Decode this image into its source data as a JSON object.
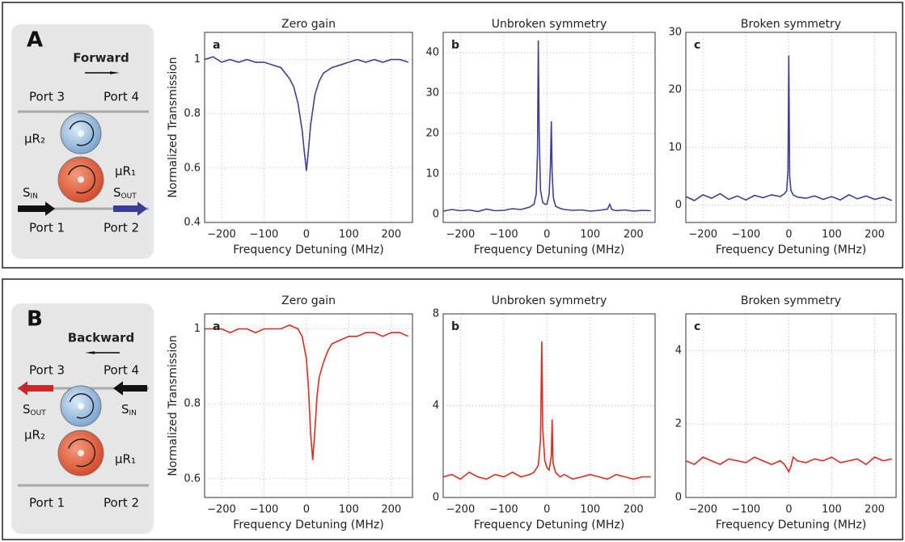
{
  "chart_data": [
    {
      "type": "line",
      "title": "Zero gain",
      "panel_label": "a",
      "y_label": "Normalized Transmission",
      "x_label": "Frequency Detuning (MHz)",
      "color": "#3c3f9c",
      "x": [
        -240,
        -220,
        -200,
        -180,
        -160,
        -140,
        -120,
        -100,
        -80,
        -60,
        -40,
        -30,
        -20,
        -10,
        -5,
        0,
        5,
        10,
        20,
        30,
        40,
        60,
        80,
        100,
        120,
        140,
        160,
        180,
        200,
        220,
        240
      ],
      "values": [
        1.0,
        1.01,
        0.99,
        1.0,
        0.99,
        1.0,
        0.99,
        0.99,
        0.98,
        0.97,
        0.93,
        0.9,
        0.84,
        0.74,
        0.66,
        0.59,
        0.67,
        0.76,
        0.87,
        0.92,
        0.95,
        0.97,
        0.98,
        0.99,
        1.0,
        0.99,
        1.0,
        0.99,
        1.0,
        1.0,
        0.99
      ],
      "xlim": [
        -240,
        250
      ],
      "xticks": [
        {
          "value": -200,
          "label": "−200"
        },
        {
          "value": -100,
          "label": "−100"
        },
        0,
        100,
        200
      ],
      "ylim": [
        0.4,
        1.1
      ],
      "yticks": [
        0.4,
        0.6,
        0.8,
        1
      ],
      "grid": true
    },
    {
      "type": "line",
      "title": "Unbroken symmetry",
      "panel_label": "b",
      "x_label": "Frequency Detuning (MHz)",
      "color": "#3c3f9c",
      "x": [
        -240,
        -220,
        -200,
        -180,
        -160,
        -140,
        -120,
        -100,
        -80,
        -60,
        -40,
        -30,
        -25,
        -22,
        -20,
        -18,
        -15,
        -10,
        -5,
        0,
        5,
        8,
        10,
        12,
        15,
        20,
        30,
        40,
        60,
        80,
        100,
        120,
        140,
        145,
        150,
        160,
        180,
        200,
        220,
        240
      ],
      "values": [
        0.8,
        1.2,
        0.9,
        1.1,
        0.7,
        1.3,
        0.9,
        1.0,
        1.4,
        1.2,
        1.8,
        2.5,
        5,
        15,
        43,
        20,
        6,
        3,
        2.5,
        2.5,
        5,
        12,
        23,
        10,
        4,
        2,
        1.5,
        1.2,
        1.0,
        1.1,
        0.8,
        1.0,
        1.3,
        2.5,
        1.2,
        0.9,
        1.1,
        0.8,
        1.0,
        0.9
      ],
      "xlim": [
        -240,
        250
      ],
      "xticks": [
        {
          "value": -200,
          "label": "−200"
        },
        {
          "value": -100,
          "label": "−100"
        },
        0,
        100,
        200
      ],
      "ylim": [
        -2,
        45
      ],
      "yticks": [
        0,
        10,
        20,
        30,
        40
      ],
      "grid": true
    },
    {
      "type": "line",
      "title": "Broken symmetry",
      "panel_label": "c",
      "x_label": "Frequency Detuning (MHz)",
      "color": "#3c3f9c",
      "x": [
        -240,
        -220,
        -200,
        -180,
        -160,
        -140,
        -120,
        -100,
        -80,
        -60,
        -40,
        -20,
        -10,
        -5,
        -2,
        0,
        2,
        5,
        10,
        20,
        40,
        60,
        80,
        100,
        120,
        140,
        160,
        180,
        200,
        220,
        240
      ],
      "values": [
        1.5,
        0.8,
        1.8,
        1.2,
        2.0,
        1.0,
        1.6,
        0.9,
        1.7,
        1.3,
        1.8,
        1.5,
        2.0,
        2.5,
        6,
        26,
        5,
        2.5,
        1.8,
        1.4,
        1.2,
        1.6,
        1.0,
        1.5,
        0.9,
        1.8,
        1.1,
        1.6,
        1.0,
        1.4,
        0.8
      ],
      "xlim": [
        -240,
        250
      ],
      "xticks": [
        {
          "value": -200,
          "label": "−200"
        },
        {
          "value": -100,
          "label": "−100"
        },
        0,
        100,
        200
      ],
      "ylim": [
        -3,
        30
      ],
      "yticks": [
        0,
        10,
        20,
        30
      ],
      "grid": true
    },
    {
      "type": "line",
      "title": "Zero gain",
      "panel_label": "a",
      "y_label": "Normalized Transmission",
      "x_label": "Frequency Detuning (MHz)",
      "color": "#e02a1e",
      "x": [
        -240,
        -220,
        -200,
        -180,
        -160,
        -140,
        -120,
        -100,
        -80,
        -60,
        -40,
        -20,
        -10,
        0,
        5,
        10,
        15,
        20,
        25,
        30,
        40,
        50,
        60,
        80,
        100,
        120,
        140,
        160,
        180,
        200,
        220,
        240
      ],
      "values": [
        1.0,
        1.0,
        1.0,
        0.99,
        1.0,
        1.0,
        0.99,
        1.0,
        1.0,
        1.0,
        1.01,
        1.0,
        0.98,
        0.92,
        0.84,
        0.72,
        0.65,
        0.73,
        0.82,
        0.87,
        0.91,
        0.94,
        0.96,
        0.97,
        0.98,
        0.98,
        0.99,
        0.99,
        0.98,
        0.99,
        0.99,
        0.98
      ],
      "xlim": [
        -240,
        250
      ],
      "xticks": [
        {
          "value": -200,
          "label": "−200"
        },
        {
          "value": -100,
          "label": "−100"
        },
        0,
        100,
        200
      ],
      "ylim": [
        0.55,
        1.04
      ],
      "yticks": [
        0.6,
        0.8,
        1
      ],
      "grid": true
    },
    {
      "type": "line",
      "title": "Unbroken symmetry",
      "panel_label": "b",
      "x_label": "Frequency Detuning (MHz)",
      "color": "#e02a1e",
      "x": [
        -240,
        -220,
        -200,
        -180,
        -160,
        -140,
        -120,
        -100,
        -80,
        -60,
        -40,
        -30,
        -20,
        -15,
        -12,
        -10,
        -5,
        0,
        5,
        10,
        12,
        14,
        20,
        30,
        40,
        60,
        80,
        100,
        120,
        140,
        160,
        180,
        200,
        220,
        240
      ],
      "values": [
        0.9,
        1.0,
        0.8,
        1.1,
        0.9,
        0.8,
        1.0,
        0.9,
        1.1,
        0.9,
        1.0,
        1.1,
        1.4,
        2.5,
        6.8,
        3.0,
        1.6,
        1.3,
        1.2,
        1.8,
        3.4,
        1.5,
        1.1,
        0.9,
        1.0,
        0.8,
        0.9,
        1.0,
        0.9,
        0.8,
        1.0,
        0.9,
        0.8,
        0.9,
        0.9
      ],
      "xlim": [
        -240,
        250
      ],
      "xticks": [
        {
          "value": -200,
          "label": "−200"
        },
        {
          "value": -100,
          "label": "−100"
        },
        0,
        100,
        200
      ],
      "ylim": [
        0,
        8
      ],
      "yticks": [
        0,
        4,
        8
      ],
      "grid": true
    },
    {
      "type": "line",
      "title": "Broken symmetry",
      "panel_label": "c",
      "x_label": "Frequency Detuning (MHz)",
      "color": "#e02a1e",
      "x": [
        -240,
        -220,
        -200,
        -180,
        -160,
        -140,
        -120,
        -100,
        -80,
        -60,
        -40,
        -20,
        -10,
        -5,
        0,
        5,
        10,
        20,
        40,
        60,
        80,
        100,
        120,
        140,
        160,
        180,
        200,
        220,
        240
      ],
      "values": [
        1.0,
        0.9,
        1.1,
        1.0,
        0.9,
        1.05,
        1.0,
        0.95,
        1.1,
        1.0,
        0.9,
        1.0,
        0.9,
        0.8,
        0.7,
        0.85,
        1.1,
        1.0,
        0.95,
        1.05,
        1.0,
        1.1,
        0.95,
        1.0,
        1.05,
        0.9,
        1.1,
        1.0,
        1.05
      ],
      "xlim": [
        -240,
        250
      ],
      "xticks": [
        {
          "value": -200,
          "label": "−200"
        },
        {
          "value": -100,
          "label": "−100"
        },
        0,
        100,
        200
      ],
      "ylim": [
        0,
        5
      ],
      "yticks": [
        0,
        2,
        4
      ],
      "grid": true
    }
  ],
  "diagrams": [
    {
      "label": "A",
      "direction": "Forward",
      "port_top_left": "Port 3",
      "port_top_right": "Port 4",
      "port_bottom_left": "Port 1",
      "port_bottom_right": "Port 2",
      "ring_upper": "μR₂",
      "ring_lower": "μR₁",
      "s_in": {
        "text": "S",
        "sub": "IN"
      },
      "s_out": {
        "text": "S",
        "sub": "OUT"
      }
    },
    {
      "label": "B",
      "direction": "Backward",
      "port_top_left": "Port 3",
      "port_top_right": "Port 4",
      "port_bottom_left": "Port 1",
      "port_bottom_right": "Port 2",
      "ring_upper": "μR₂",
      "ring_lower": "μR₁",
      "s_in": {
        "text": "S",
        "sub": "IN"
      },
      "s_out": {
        "text": "S",
        "sub": "OUT"
      }
    }
  ]
}
